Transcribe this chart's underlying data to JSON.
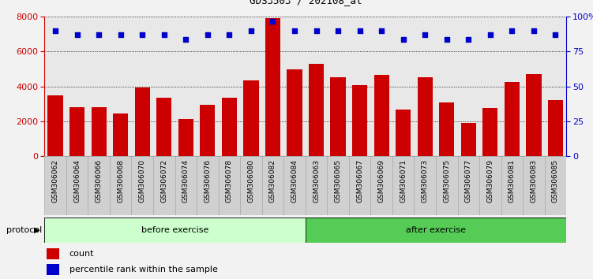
{
  "title": "GDS3503 / 202108_at",
  "categories": [
    "GSM306062",
    "GSM306064",
    "GSM306066",
    "GSM306068",
    "GSM306070",
    "GSM306072",
    "GSM306074",
    "GSM306076",
    "GSM306078",
    "GSM306080",
    "GSM306082",
    "GSM306084",
    "GSM306063",
    "GSM306065",
    "GSM306067",
    "GSM306069",
    "GSM306071",
    "GSM306073",
    "GSM306075",
    "GSM306077",
    "GSM306079",
    "GSM306081",
    "GSM306083",
    "GSM306085"
  ],
  "counts": [
    3500,
    2800,
    2800,
    2450,
    3950,
    3350,
    2150,
    2950,
    3350,
    4350,
    7900,
    5000,
    5300,
    4550,
    4100,
    4650,
    2700,
    4550,
    3100,
    1900,
    2750,
    4250,
    4700,
    3200
  ],
  "percentiles": [
    90,
    87,
    87,
    87,
    87,
    87,
    84,
    87,
    87,
    90,
    97,
    90,
    90,
    90,
    90,
    90,
    84,
    87,
    84,
    84,
    87,
    90,
    90,
    87
  ],
  "n_before": 12,
  "n_after": 12,
  "before_label": "before exercise",
  "after_label": "after exercise",
  "protocol_label": "protocol",
  "bar_color": "#cc0000",
  "dot_color": "#0000cc",
  "before_color": "#ccffcc",
  "after_color": "#55cc55",
  "tick_bg_color": "#d0d0d0",
  "plot_bg_color": "#e8e8e8",
  "fig_bg_color": "#f2f2f2",
  "ylim_left": [
    0,
    8000
  ],
  "ylim_right": [
    0,
    100
  ],
  "yticks_left": [
    0,
    2000,
    4000,
    6000,
    8000
  ],
  "yticks_right": [
    0,
    25,
    50,
    75,
    100
  ],
  "ytick_labels_right": [
    "0",
    "25",
    "50",
    "75",
    "100%"
  ],
  "legend_count": "count",
  "legend_pct": "percentile rank within the sample"
}
